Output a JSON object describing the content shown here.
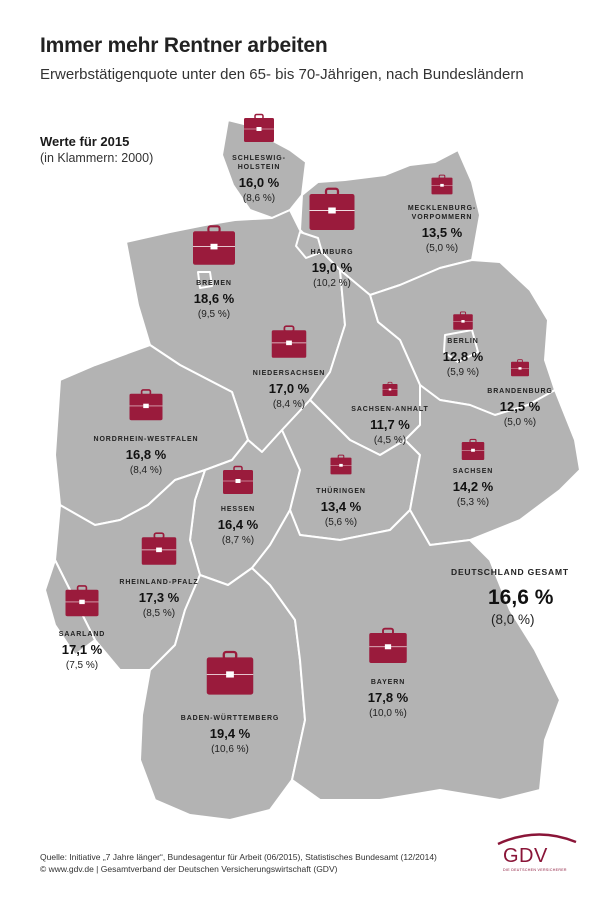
{
  "title": "Immer mehr Rentner arbeiten",
  "subtitle": "Erwerbstätigenquote unter den 65- bis 70-Jährigen, nach Bundesländern",
  "note": {
    "main": "Werte für 2015",
    "sub": "(in Klammern: 2000)"
  },
  "colors": {
    "map": "#b3b3b3",
    "border": "#ffffff",
    "briefcase": "#9a1b3c",
    "brand": "#8a1538"
  },
  "states": [
    {
      "id": "schleswig-holstein",
      "name_lines": [
        "SCHLESWIG-",
        "HOLSTEIN"
      ],
      "value_2015": "16,0 %",
      "value_2000": "(8,6 %)",
      "icon_size": 1.0
    },
    {
      "id": "hamburg",
      "name_lines": [
        "HAMBURG"
      ],
      "value_2015": "19,0 %",
      "value_2000": "(10,2 %)",
      "icon_size": 1.5
    },
    {
      "id": "mecklenburg-vorpommern",
      "name_lines": [
        "MECKLENBURG-",
        "VORPOMMERN"
      ],
      "value_2015": "13,5 %",
      "value_2000": "(5,0 %)",
      "icon_size": 0.7
    },
    {
      "id": "bremen",
      "name_lines": [
        "BREMEN"
      ],
      "value_2015": "18,6 %",
      "value_2000": "(9,5 %)",
      "icon_size": 1.4
    },
    {
      "id": "niedersachsen",
      "name_lines": [
        "NIEDERSACHSEN"
      ],
      "value_2015": "17,0 %",
      "value_2000": "(8,4 %)",
      "icon_size": 1.15
    },
    {
      "id": "berlin",
      "name_lines": [
        "BERLIN"
      ],
      "value_2015": "12,8 %",
      "value_2000": "(5,9 %)",
      "icon_size": 0.65
    },
    {
      "id": "brandenburg",
      "name_lines": [
        "BRANDENBURG"
      ],
      "value_2015": "12,5 %",
      "value_2000": "(5,0 %)",
      "icon_size": 0.6
    },
    {
      "id": "sachsen-anhalt",
      "name_lines": [
        "SACHSEN-ANHALT"
      ],
      "value_2015": "11,7 %",
      "value_2000": "(4,5 %)",
      "icon_size": 0.5
    },
    {
      "id": "nordrhein-westfalen",
      "name_lines": [
        "NORDRHEIN-WESTFALEN"
      ],
      "value_2015": "16,8 %",
      "value_2000": "(8,4 %)",
      "icon_size": 1.1
    },
    {
      "id": "sachsen",
      "name_lines": [
        "SACHSEN"
      ],
      "value_2015": "14,2 %",
      "value_2000": "(5,3 %)",
      "icon_size": 0.75
    },
    {
      "id": "hessen",
      "name_lines": [
        "HESSEN"
      ],
      "value_2015": "16,4 %",
      "value_2000": "(8,7 %)",
      "icon_size": 1.0
    },
    {
      "id": "thueringen",
      "name_lines": [
        "THÜRINGEN"
      ],
      "value_2015": "13,4 %",
      "value_2000": "(5,6 %)",
      "icon_size": 0.7
    },
    {
      "id": "rheinland-pfalz",
      "name_lines": [
        "RHEINLAND-PFALZ"
      ],
      "value_2015": "17,3 %",
      "value_2000": "(8,5 %)",
      "icon_size": 1.15
    },
    {
      "id": "saarland",
      "name_lines": [
        "SAARLAND"
      ],
      "value_2015": "17,1 %",
      "value_2000": "(7,5 %)",
      "icon_size": 1.1
    },
    {
      "id": "baden-wuerttemberg",
      "name_lines": [
        "BADEN-WÜRTTEMBERG"
      ],
      "value_2015": "19,4 %",
      "value_2000": "(10,6 %)",
      "icon_size": 1.55
    },
    {
      "id": "bayern",
      "name_lines": [
        "BAYERN"
      ],
      "value_2015": "17,8 %",
      "value_2000": "(10,0 %)",
      "icon_size": 1.25
    }
  ],
  "total": {
    "label": "DEUTSCHLAND GESAMT",
    "value_2015": "16,6 %",
    "value_2000": "(8,0 %)"
  },
  "source": {
    "line1": "Quelle: Initiative „7 Jahre länger“, Bundesagentur für Arbeit (06/2015), Statistisches Bundesamt (12/2014)",
    "line2": "© www.gdv.de | Gesamtverband der Deutschen Versicherungswirtschaft (GDV)"
  },
  "logo": {
    "text": "GDV",
    "subtext": "DIE DEUTSCHEN VERSICHERER"
  }
}
